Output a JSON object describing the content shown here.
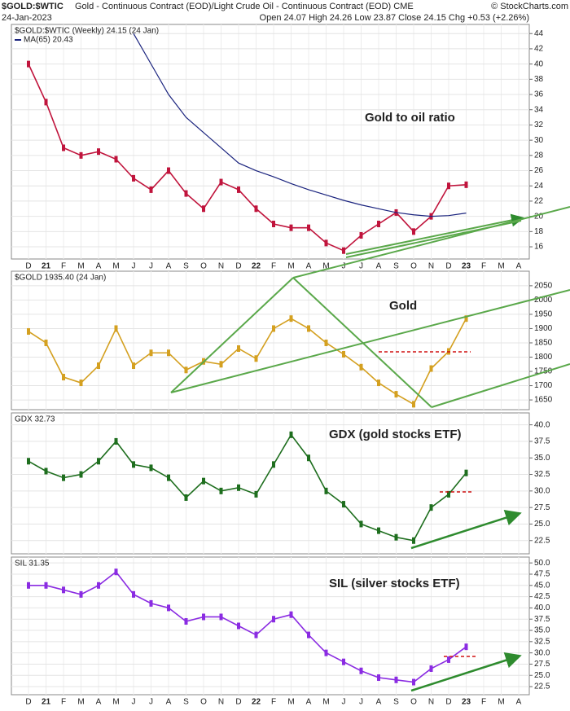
{
  "header": {
    "symbol": "$GOLD:$WTIC",
    "description": "Gold - Continuous Contract (EOD)/Light Crude Oil - Continuous Contract (EOD) CME",
    "date": "24-Jan-2023",
    "ohlc": "Open 24.07 High 24.26 Low 23.87 Close 24.15 Chg +0.53 (+2.26%)",
    "copyright": "© StockCharts.com"
  },
  "chart_data": [
    {
      "type": "line",
      "label": "$GOLD:$WTIC (Weekly) 24.15 (24 Jan)",
      "annotation": "Gold to oil ratio",
      "annotation_color": "#111111",
      "categories": [
        "D",
        "21",
        "F",
        "M",
        "A",
        "M",
        "J",
        "J",
        "A",
        "S",
        "O",
        "N",
        "D",
        "22",
        "F",
        "M",
        "A",
        "M",
        "J",
        "J",
        "A",
        "S",
        "O",
        "N",
        "D",
        "23",
        "F",
        "M",
        "A"
      ],
      "series": [
        {
          "name": "$GOLD:$WTIC",
          "color": "#c0143c",
          "values": [
            40,
            35,
            29,
            28,
            28.5,
            27.5,
            25,
            23.5,
            26,
            23,
            21,
            24.5,
            23.5,
            21,
            19,
            18.5,
            18.5,
            16.5,
            15.5,
            17.5,
            19,
            20.5,
            18,
            20,
            24,
            24.15,
            null,
            null,
            null
          ]
        },
        {
          "name": "MA(65) 20.43",
          "color": "#1a237e",
          "values": [
            null,
            null,
            null,
            null,
            null,
            null,
            44,
            40,
            36,
            33,
            31,
            29,
            27,
            26,
            25.2,
            24.3,
            23.5,
            22.8,
            22.1,
            21.5,
            21,
            20.5,
            20.2,
            20,
            20.1,
            20.43,
            null,
            null,
            null
          ]
        }
      ],
      "ylim": [
        14.4,
        45.2
      ],
      "yticks": [
        16,
        18,
        20,
        22,
        24,
        26,
        28,
        30,
        32,
        34,
        36,
        38,
        40,
        42,
        44
      ]
    },
    {
      "type": "line",
      "label": "$GOLD 1935.40 (24 Jan)",
      "annotation": "Gold",
      "annotation_color": "#e8a020",
      "series": [
        {
          "name": "$GOLD",
          "color": "#d4a020",
          "values": [
            1890,
            1850,
            1730,
            1710,
            1770,
            1900,
            1770,
            1815,
            1815,
            1755,
            1785,
            1775,
            1830,
            1795,
            1900,
            1935,
            1900,
            1850,
            1810,
            1765,
            1710,
            1670,
            1635,
            1760,
            1820,
            1935,
            null,
            null,
            null
          ]
        }
      ],
      "ylim": [
        1616,
        2101
      ],
      "yticks": [
        1650,
        1700,
        1750,
        1800,
        1850,
        1900,
        1950,
        2000,
        2050
      ]
    },
    {
      "type": "line",
      "label": "GDX 32.73",
      "annotation": "GDX (gold stocks ETF)",
      "annotation_color": "#1e7a1e",
      "series": [
        {
          "name": "GDX",
          "color": "#1e6e1e",
          "values": [
            34.5,
            33,
            32,
            32.5,
            34.5,
            37.5,
            34,
            33.5,
            32,
            29,
            31.5,
            30,
            30.5,
            29.5,
            34,
            38.5,
            35,
            30,
            28,
            25,
            24,
            23,
            22.5,
            27.5,
            29.5,
            32.73,
            null,
            null,
            null
          ]
        }
      ],
      "ylim": [
        20.5,
        41.8
      ],
      "yticks": [
        22.5,
        {
          "value": 25,
          "label": "25.0"
        },
        27.5,
        {
          "value": 30,
          "label": "30.0"
        },
        32.5,
        {
          "value": 35,
          "label": "35.0"
        },
        37.5,
        {
          "value": 40,
          "label": "40.0"
        }
      ]
    },
    {
      "type": "line",
      "label": "SIL 31.35",
      "annotation": "SIL (silver stocks ETF)",
      "annotation_color": "#8a2be2",
      "categories": [
        "D",
        "21",
        "F",
        "M",
        "A",
        "M",
        "J",
        "J",
        "A",
        "S",
        "O",
        "N",
        "D",
        "22",
        "F",
        "M",
        "A",
        "M",
        "J",
        "J",
        "A",
        "S",
        "O",
        "N",
        "D",
        "23",
        "F",
        "M",
        "A"
      ],
      "series": [
        {
          "name": "SIL",
          "color": "#8a2be2",
          "values": [
            45,
            45,
            44,
            43,
            45,
            48,
            43,
            41,
            40,
            37,
            38,
            38,
            36,
            34,
            37.5,
            38.5,
            34,
            30,
            28,
            26,
            24.5,
            24,
            23.5,
            26.5,
            28.5,
            31.35,
            null,
            null,
            null
          ]
        }
      ],
      "ylim": [
        20.7,
        51.3
      ],
      "yticks": [
        22.5,
        {
          "value": 25,
          "label": "25.0"
        },
        27.5,
        {
          "value": 30,
          "label": "30.0"
        },
        32.5,
        {
          "value": 35,
          "label": "35.0"
        },
        37.5,
        {
          "value": 40,
          "label": "40.0"
        },
        42.5,
        {
          "value": 45,
          "label": "45.0"
        },
        47.5,
        {
          "value": 50,
          "label": "50.0"
        }
      ]
    }
  ]
}
